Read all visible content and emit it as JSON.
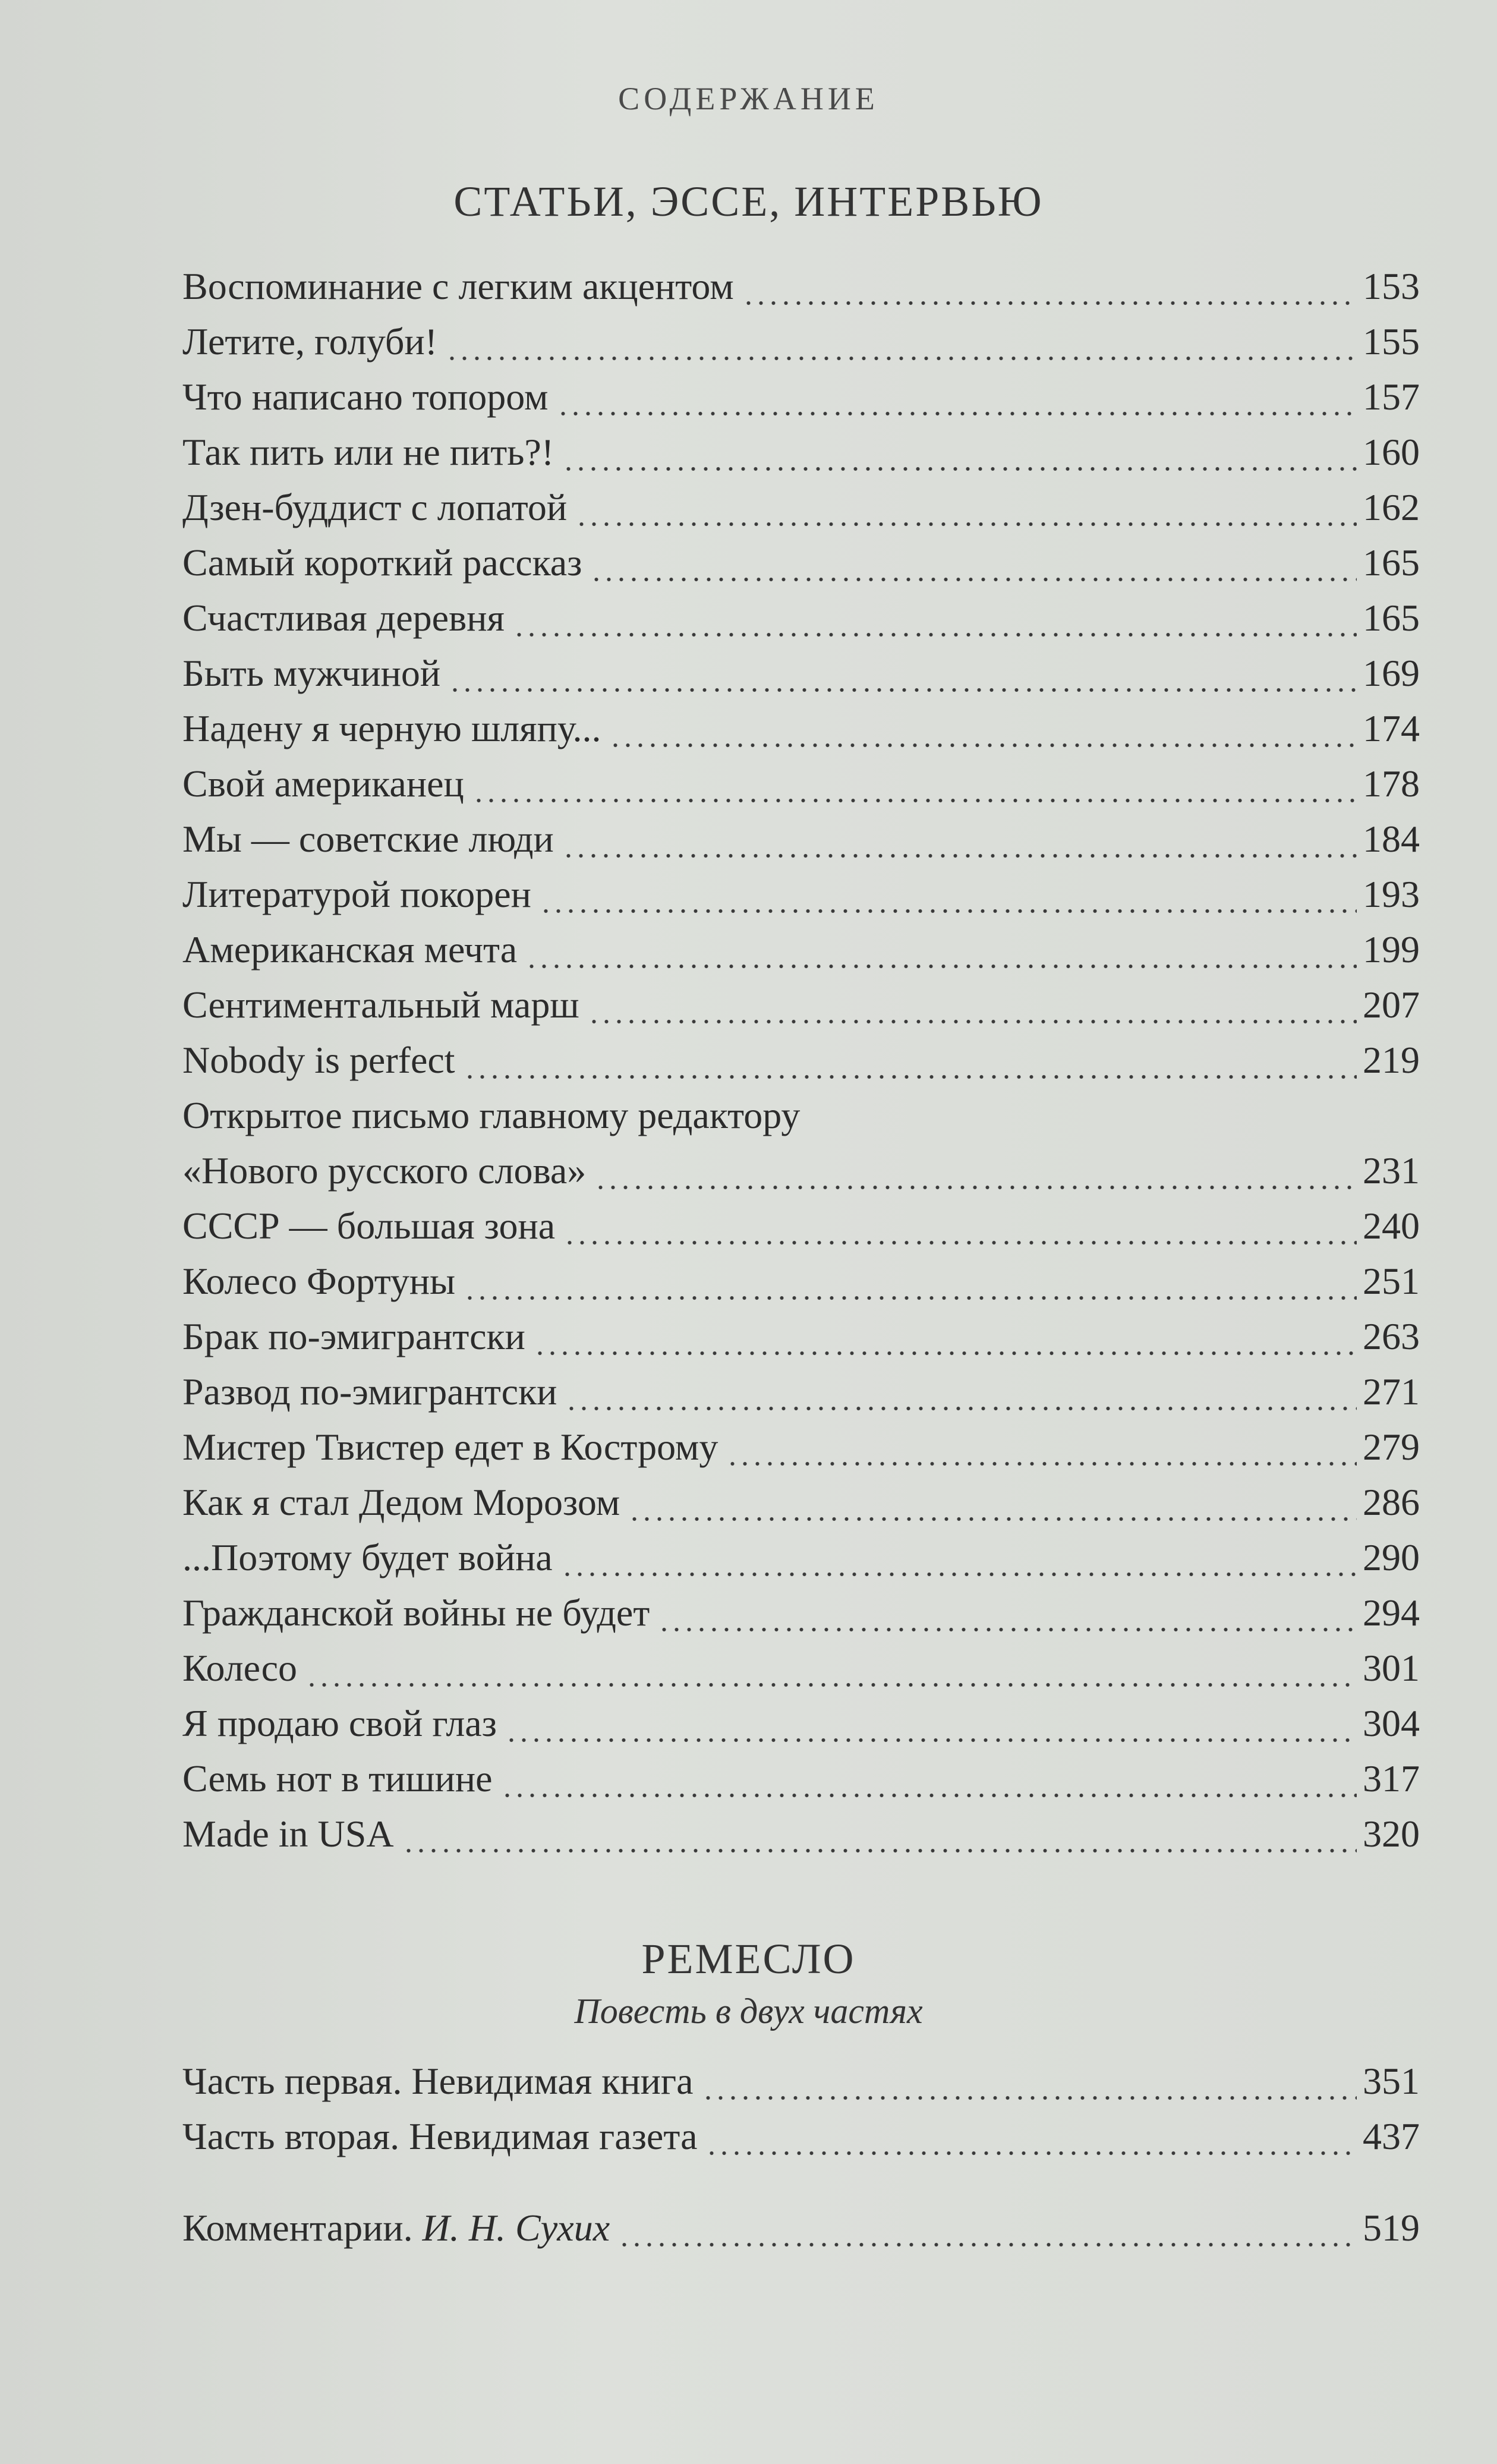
{
  "running_head": "СОДЕРЖАНИЕ",
  "section1": {
    "title": "СТАТЬИ, ЭССЕ, ИНТЕРВЬЮ",
    "entries": [
      {
        "title": "Воспоминание с легким акцентом",
        "page": "153"
      },
      {
        "title": "Летите, голуби!",
        "page": "155"
      },
      {
        "title": "Что написано топором",
        "page": "157"
      },
      {
        "title": "Так пить или не пить?!",
        "page": "160"
      },
      {
        "title": "Дзен-буддист с лопатой",
        "page": "162"
      },
      {
        "title": "Самый короткий рассказ",
        "page": "165"
      },
      {
        "title": "Счастливая деревня",
        "page": "165"
      },
      {
        "title": "Быть мужчиной",
        "page": "169"
      },
      {
        "title": "Надену я черную шляпу...",
        "page": "174"
      },
      {
        "title": "Свой американец",
        "page": "178"
      },
      {
        "title": "Мы — советские люди",
        "page": "184"
      },
      {
        "title": "Литературой покорен",
        "page": "193"
      },
      {
        "title": "Американская мечта",
        "page": "199"
      },
      {
        "title": "Сентиментальный марш",
        "page": "207"
      },
      {
        "title": "Nobody is perfect",
        "page": "219"
      }
    ],
    "open_letter": {
      "line1": "Открытое письмо главному редактору",
      "line2": "«Нового русского слова»",
      "page": "231"
    },
    "entries2": [
      {
        "title": "СССР — большая зона",
        "page": "240"
      },
      {
        "title": "Колесо Фортуны",
        "page": "251"
      },
      {
        "title": "Брак по-эмигрантски",
        "page": "263"
      },
      {
        "title": "Развод по-эмигрантски",
        "page": "271"
      },
      {
        "title": "Мистер Твистер едет в Кострому",
        "page": "279"
      },
      {
        "title": "Как я стал Дедом Морозом",
        "page": "286"
      },
      {
        "title": "...Поэтому будет война",
        "page": "290"
      },
      {
        "title": "Гражданской войны не будет",
        "page": "294"
      },
      {
        "title": "Колесо",
        "page": "301"
      },
      {
        "title": "Я продаю свой глаз",
        "page": "304"
      },
      {
        "title": "Семь нот в тишине",
        "page": "317"
      },
      {
        "title": "Made in USA",
        "page": "320"
      }
    ]
  },
  "section2": {
    "title": "РЕМЕСЛО",
    "subtitle": "Повесть в двух частях",
    "entries": [
      {
        "title": "Часть первая. Невидимая книга",
        "page": "351"
      },
      {
        "title": "Часть вторая. Невидимая газета",
        "page": "437"
      }
    ]
  },
  "commentary": {
    "title": "Комментарии.",
    "author": "И. Н. Сухих",
    "page": "519"
  }
}
